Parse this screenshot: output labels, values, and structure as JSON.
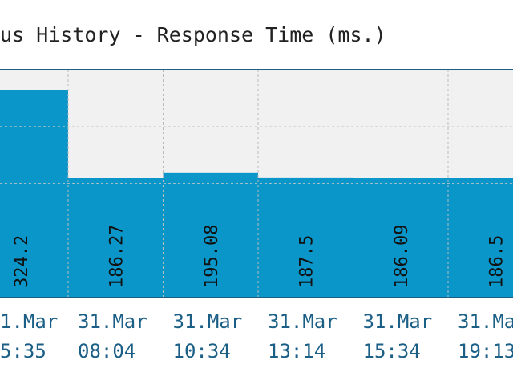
{
  "chart_data": {
    "type": "bar",
    "title": "us History - Response Time (ms.)",
    "categories": [
      [
        "1.Mar",
        "5:35"
      ],
      [
        "31.Mar",
        "08:04"
      ],
      [
        "31.Mar",
        "10:34"
      ],
      [
        "31.Mar",
        "13:14"
      ],
      [
        "31.Mar",
        "15:34"
      ],
      [
        "31.Ma",
        "19:13"
      ]
    ],
    "values": [
      324.2,
      186.27,
      195.08,
      187.5,
      186.09,
      186.5
    ],
    "color": "#0b96c9",
    "ylim": [
      0,
      356
    ],
    "yticks": [
      178,
      267
    ],
    "grid": true
  }
}
